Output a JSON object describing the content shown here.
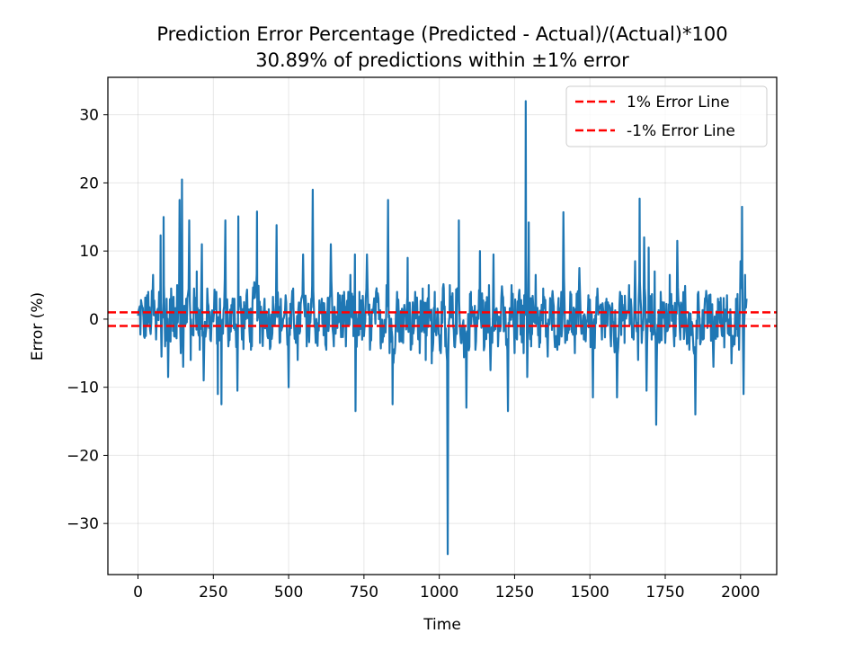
{
  "chart_data": {
    "type": "line",
    "title": "Prediction Error Percentage (Predicted - Actual)/(Actual)*100",
    "subtitle": "30.89% of predictions within ±1% error",
    "xlabel": "Time",
    "ylabel": "Error (%)",
    "xlim": [
      -100,
      2120
    ],
    "ylim": [
      -37.5,
      35.5
    ],
    "xticks": [
      0,
      250,
      500,
      750,
      1000,
      1250,
      1500,
      1750,
      2000
    ],
    "xtick_labels": [
      "0",
      "250",
      "500",
      "750",
      "1000",
      "1250",
      "1500",
      "1750",
      "2000"
    ],
    "yticks": [
      -30,
      -20,
      -10,
      0,
      10,
      20,
      30
    ],
    "ytick_labels": [
      "−30",
      "−20",
      "−10",
      "0",
      "10",
      "20",
      "30"
    ],
    "grid": true,
    "legend_position": "upper right",
    "legend": [
      {
        "label": "1% Error Line",
        "color": "#ff0000",
        "style": "dashed"
      },
      {
        "label": "-1% Error Line",
        "color": "#ff0000",
        "style": "dashed"
      }
    ],
    "series": [
      {
        "color": "#1f77b4",
        "style": "solid",
        "x_start": 0,
        "x_end": 2020,
        "points": [
          [
            0,
            0.5
          ],
          [
            10,
            2.8
          ],
          [
            20,
            -2.5
          ],
          [
            30,
            3.5
          ],
          [
            40,
            -1.5
          ],
          [
            50,
            6.5
          ],
          [
            60,
            -3.0
          ],
          [
            70,
            4.0
          ],
          [
            75,
            12.3
          ],
          [
            78,
            -5.5
          ],
          [
            85,
            15.0
          ],
          [
            90,
            -4.0
          ],
          [
            95,
            3.0
          ],
          [
            100,
            -8.5
          ],
          [
            110,
            4.5
          ],
          [
            120,
            -2.5
          ],
          [
            130,
            5.0
          ],
          [
            138,
            17.5
          ],
          [
            142,
            -5.0
          ],
          [
            146,
            20.5
          ],
          [
            150,
            -7.0
          ],
          [
            160,
            3.0
          ],
          [
            170,
            14.5
          ],
          [
            175,
            -6.0
          ],
          [
            185,
            2.5
          ],
          [
            195,
            7.0
          ],
          [
            205,
            -4.5
          ],
          [
            212,
            11.0
          ],
          [
            218,
            -9.0
          ],
          [
            230,
            4.5
          ],
          [
            240,
            -3.0
          ],
          [
            260,
            4.0
          ],
          [
            265,
            -11.0
          ],
          [
            272,
            3.0
          ],
          [
            277,
            -12.5
          ],
          [
            290,
            14.5
          ],
          [
            300,
            -4.0
          ],
          [
            320,
            3.0
          ],
          [
            330,
            -10.5
          ],
          [
            333,
            15.1
          ],
          [
            345,
            -3.0
          ],
          [
            360,
            3.5
          ],
          [
            375,
            -4.5
          ],
          [
            395,
            15.8
          ],
          [
            405,
            -3.5
          ],
          [
            420,
            3.0
          ],
          [
            440,
            -4.0
          ],
          [
            460,
            13.8
          ],
          [
            470,
            -3.5
          ],
          [
            490,
            3.5
          ],
          [
            500,
            -10.0
          ],
          [
            515,
            4.5
          ],
          [
            530,
            -6.0
          ],
          [
            548,
            9.5
          ],
          [
            560,
            -4.0
          ],
          [
            575,
            3.0
          ],
          [
            580,
            19.0
          ],
          [
            590,
            -3.5
          ],
          [
            610,
            3.0
          ],
          [
            625,
            -4.5
          ],
          [
            640,
            11.0
          ],
          [
            650,
            -4.0
          ],
          [
            670,
            3.5
          ],
          [
            690,
            -4.0
          ],
          [
            705,
            6.5
          ],
          [
            715,
            -2.5
          ],
          [
            720,
            9.5
          ],
          [
            722,
            -13.5
          ],
          [
            735,
            4.0
          ],
          [
            750,
            -2.5
          ],
          [
            760,
            9.5
          ],
          [
            770,
            -4.5
          ],
          [
            790,
            4.0
          ],
          [
            805,
            -3.5
          ],
          [
            825,
            5.0
          ],
          [
            830,
            17.5
          ],
          [
            835,
            -5.0
          ],
          [
            845,
            -12.5
          ],
          [
            860,
            4.0
          ],
          [
            880,
            -3.5
          ],
          [
            895,
            9.0
          ],
          [
            905,
            -4.5
          ],
          [
            920,
            4.0
          ],
          [
            935,
            -5.0
          ],
          [
            945,
            4.5
          ],
          [
            955,
            -6.0
          ],
          [
            965,
            5.0
          ],
          [
            975,
            -6.5
          ],
          [
            985,
            4.0
          ],
          [
            1005,
            -5.0
          ],
          [
            1015,
            4.5
          ],
          [
            1020,
            -4.0
          ],
          [
            1028,
            -34.5
          ],
          [
            1035,
            5.0
          ],
          [
            1050,
            -4.0
          ],
          [
            1065,
            14.5
          ],
          [
            1072,
            -3.5
          ],
          [
            1090,
            -13.0
          ],
          [
            1105,
            4.0
          ],
          [
            1120,
            -4.5
          ],
          [
            1135,
            10.0
          ],
          [
            1150,
            -4.0
          ],
          [
            1165,
            5.0
          ],
          [
            1170,
            -7.5
          ],
          [
            1180,
            9.5
          ],
          [
            1195,
            -4.0
          ],
          [
            1210,
            3.5
          ],
          [
            1228,
            -13.5
          ],
          [
            1240,
            5.0
          ],
          [
            1250,
            -5.0
          ],
          [
            1265,
            4.0
          ],
          [
            1280,
            -5.0
          ],
          [
            1287,
            32.0
          ],
          [
            1292,
            -8.5
          ],
          [
            1297,
            14.2
          ],
          [
            1305,
            -4.0
          ],
          [
            1320,
            6.5
          ],
          [
            1335,
            -3.5
          ],
          [
            1345,
            4.5
          ],
          [
            1360,
            -5.5
          ],
          [
            1375,
            3.5
          ],
          [
            1390,
            -4.0
          ],
          [
            1405,
            4.0
          ],
          [
            1412,
            15.7
          ],
          [
            1418,
            -3.5
          ],
          [
            1435,
            4.0
          ],
          [
            1450,
            -5.0
          ],
          [
            1465,
            7.5
          ],
          [
            1480,
            -3.0
          ],
          [
            1495,
            3.5
          ],
          [
            1510,
            -11.5
          ],
          [
            1525,
            4.5
          ],
          [
            1540,
            -3.0
          ],
          [
            1555,
            3.0
          ],
          [
            1570,
            -4.0
          ],
          [
            1590,
            -11.5
          ],
          [
            1600,
            4.0
          ],
          [
            1615,
            -3.5
          ],
          [
            1630,
            5.0
          ],
          [
            1645,
            -3.0
          ],
          [
            1650,
            8.5
          ],
          [
            1660,
            -6.0
          ],
          [
            1665,
            17.7
          ],
          [
            1672,
            -3.5
          ],
          [
            1680,
            12.0
          ],
          [
            1688,
            -10.5
          ],
          [
            1695,
            10.5
          ],
          [
            1705,
            -3.0
          ],
          [
            1715,
            7.0
          ],
          [
            1720,
            -15.5
          ],
          [
            1735,
            4.0
          ],
          [
            1750,
            -3.5
          ],
          [
            1765,
            6.5
          ],
          [
            1780,
            -4.0
          ],
          [
            1790,
            11.5
          ],
          [
            1800,
            -3.0
          ],
          [
            1815,
            3.5
          ],
          [
            1830,
            -4.5
          ],
          [
            1850,
            -14.0
          ],
          [
            1860,
            4.0
          ],
          [
            1875,
            -3.0
          ],
          [
            1895,
            3.5
          ],
          [
            1910,
            -7.0
          ],
          [
            1925,
            3.0
          ],
          [
            1940,
            -2.5
          ],
          [
            1955,
            3.5
          ],
          [
            1970,
            -6.5
          ],
          [
            1985,
            3.0
          ],
          [
            1995,
            -4.5
          ],
          [
            2000,
            8.5
          ],
          [
            2005,
            16.5
          ],
          [
            2010,
            -11.0
          ],
          [
            2015,
            6.5
          ],
          [
            2020,
            3.0
          ]
        ]
      },
      {
        "name": "1% Error Line",
        "color": "#ff0000",
        "style": "dashed",
        "y": 1
      },
      {
        "name": "-1% Error Line",
        "color": "#ff0000",
        "style": "dashed",
        "y": -1
      }
    ]
  }
}
